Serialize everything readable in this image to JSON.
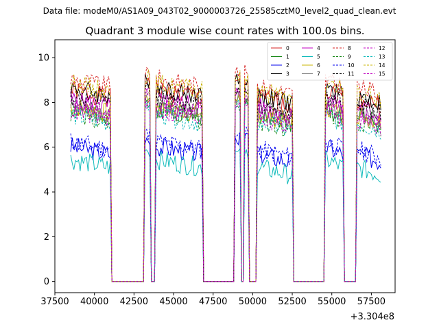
{
  "chart_data": {
    "type": "line",
    "suptitle": "Data file: modeM0/AS1A09_043T02_9000003726_25585cztM0_level2_quad_clean.evt",
    "title": "Quadrant 3 module wise count rates with 100.0s bins.",
    "xlabel": "",
    "ylabel": "",
    "x_offset_label": "+3.304e8",
    "xlim": [
      37500,
      59000
    ],
    "ylim": [
      -0.5,
      10.8
    ],
    "xticks": [
      37500,
      40000,
      42500,
      45000,
      47500,
      50000,
      52500,
      55000,
      57500
    ],
    "xtick_labels": [
      "37500",
      "40000",
      "42500",
      "45000",
      "47500",
      "50000",
      "52500",
      "55000",
      "57500"
    ],
    "yticks": [
      0,
      2,
      4,
      6,
      8,
      10
    ],
    "ytick_labels": [
      "0",
      "2",
      "4",
      "6",
      "8",
      "10"
    ],
    "legend_location": "upper right",
    "legend_entries": [
      "0",
      "1",
      "2",
      "3",
      "4",
      "5",
      "6",
      "7",
      "8",
      "9",
      "10",
      "11",
      "12",
      "13",
      "14",
      "15"
    ],
    "gti_segments": [
      [
        38500,
        41000
      ],
      [
        43200,
        43500
      ],
      [
        43900,
        46800
      ],
      [
        48900,
        49200
      ],
      [
        49500,
        49700
      ],
      [
        50300,
        52500
      ],
      [
        54600,
        55700
      ],
      [
        56600,
        58100
      ]
    ],
    "x_sample_step": 100,
    "series": [
      {
        "name": "0",
        "color": "#d62020",
        "style": "solid",
        "mean": 8.3
      },
      {
        "name": "1",
        "color": "#1a8a1a",
        "style": "solid",
        "mean": 7.5
      },
      {
        "name": "2",
        "color": "#0000ee",
        "style": "solid",
        "mean": 5.8
      },
      {
        "name": "3",
        "color": "#000000",
        "style": "solid",
        "mean": 8.4
      },
      {
        "name": "4",
        "color": "#c000c0",
        "style": "solid",
        "mean": 7.9
      },
      {
        "name": "5",
        "color": "#11bbbb",
        "style": "solid",
        "mean": 5.2
      },
      {
        "name": "6",
        "color": "#c8b400",
        "style": "solid",
        "mean": 7.6
      },
      {
        "name": "7",
        "color": "#808080",
        "style": "solid",
        "mean": 7.6
      },
      {
        "name": "8",
        "color": "#d62020",
        "style": "dashed",
        "mean": 8.8
      },
      {
        "name": "9",
        "color": "#1a8a1a",
        "style": "dashed",
        "mean": 7.3
      },
      {
        "name": "10",
        "color": "#0000ee",
        "style": "dashed",
        "mean": 6.0
      },
      {
        "name": "11",
        "color": "#000000",
        "style": "dashed",
        "mean": 8.0
      },
      {
        "name": "12",
        "color": "#c000c0",
        "style": "dashed",
        "mean": 7.7
      },
      {
        "name": "13",
        "color": "#11bbbb",
        "style": "dashed",
        "mean": 7.2
      },
      {
        "name": "14",
        "color": "#c8b400",
        "style": "dashed",
        "mean": 8.6
      },
      {
        "name": "15",
        "color": "#c000c0",
        "style": "dashed",
        "mean": 7.4
      }
    ]
  }
}
